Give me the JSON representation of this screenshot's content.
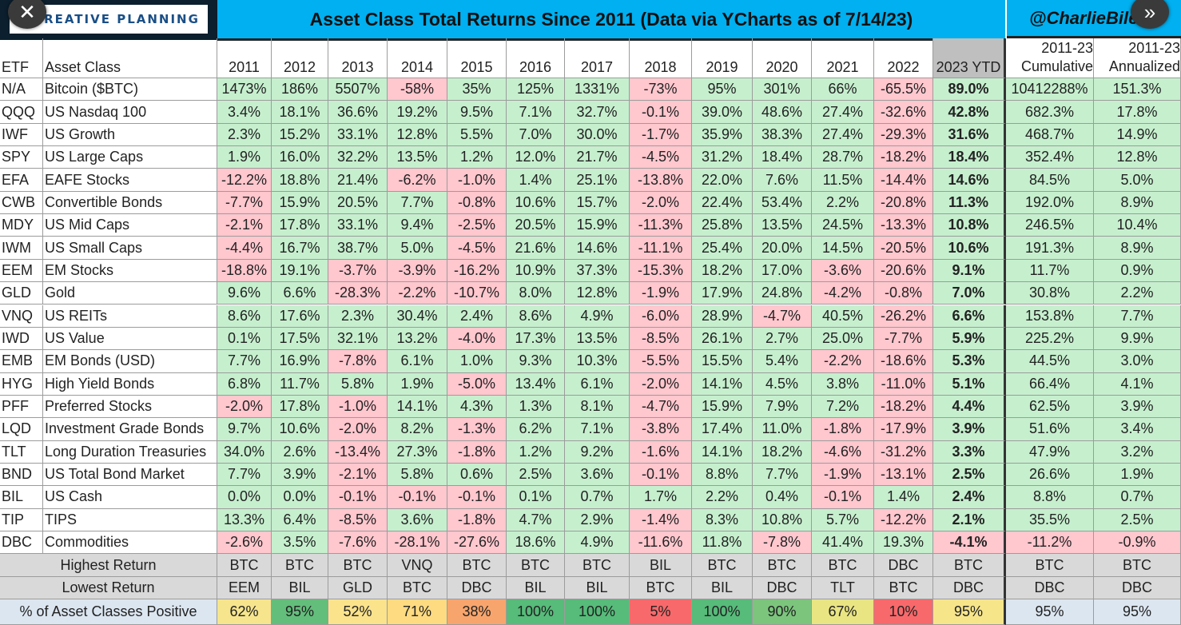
{
  "header": {
    "logo_text": "CREATIVE PLANNING",
    "title": "Asset Class Total Returns Since 2011 (Data via YCharts as of 7/14/23)",
    "handle": "@CharlieBile",
    "close_glyph": "✕",
    "next_glyph": "»"
  },
  "columns": {
    "etf": "ETF",
    "asset": "Asset Class",
    "years": [
      "2011",
      "2012",
      "2013",
      "2014",
      "2015",
      "2016",
      "2017",
      "2018",
      "2019",
      "2020",
      "2021",
      "2022",
      "2023 YTD"
    ],
    "cum1": "2011-23",
    "cum2": "Cumulative",
    "ann1": "2011-23",
    "ann2": "Annualized"
  },
  "rows": [
    {
      "etf": "N/A",
      "asset": "Bitcoin ($BTC)",
      "vals": [
        "1473%",
        "186%",
        "5507%",
        "-58%",
        "35%",
        "125%",
        "1331%",
        "-73%",
        "95%",
        "301%",
        "66%",
        "-65.5%",
        "89.0%"
      ],
      "cum": "10412288%",
      "ann": "151.3%"
    },
    {
      "etf": "QQQ",
      "asset": "US Nasdaq 100",
      "vals": [
        "3.4%",
        "18.1%",
        "36.6%",
        "19.2%",
        "9.5%",
        "7.1%",
        "32.7%",
        "-0.1%",
        "39.0%",
        "48.6%",
        "27.4%",
        "-32.6%",
        "42.8%"
      ],
      "cum": "682.3%",
      "ann": "17.8%"
    },
    {
      "etf": "IWF",
      "asset": "US Growth",
      "vals": [
        "2.3%",
        "15.2%",
        "33.1%",
        "12.8%",
        "5.5%",
        "7.0%",
        "30.0%",
        "-1.7%",
        "35.9%",
        "38.3%",
        "27.4%",
        "-29.3%",
        "31.6%"
      ],
      "cum": "468.7%",
      "ann": "14.9%"
    },
    {
      "etf": "SPY",
      "asset": "US Large Caps",
      "vals": [
        "1.9%",
        "16.0%",
        "32.2%",
        "13.5%",
        "1.2%",
        "12.0%",
        "21.7%",
        "-4.5%",
        "31.2%",
        "18.4%",
        "28.7%",
        "-18.2%",
        "18.4%"
      ],
      "cum": "352.4%",
      "ann": "12.8%"
    },
    {
      "etf": "EFA",
      "asset": "EAFE Stocks",
      "vals": [
        "-12.2%",
        "18.8%",
        "21.4%",
        "-6.2%",
        "-1.0%",
        "1.4%",
        "25.1%",
        "-13.8%",
        "22.0%",
        "7.6%",
        "11.5%",
        "-14.4%",
        "14.6%"
      ],
      "cum": "84.5%",
      "ann": "5.0%"
    },
    {
      "etf": "CWB",
      "asset": "Convertible Bonds",
      "vals": [
        "-7.7%",
        "15.9%",
        "20.5%",
        "7.7%",
        "-0.8%",
        "10.6%",
        "15.7%",
        "-2.0%",
        "22.4%",
        "53.4%",
        "2.2%",
        "-20.8%",
        "11.3%"
      ],
      "cum": "192.0%",
      "ann": "8.9%"
    },
    {
      "etf": "MDY",
      "asset": "US Mid Caps",
      "vals": [
        "-2.1%",
        "17.8%",
        "33.1%",
        "9.4%",
        "-2.5%",
        "20.5%",
        "15.9%",
        "-11.3%",
        "25.8%",
        "13.5%",
        "24.5%",
        "-13.3%",
        "10.8%"
      ],
      "cum": "246.5%",
      "ann": "10.4%"
    },
    {
      "etf": "IWM",
      "asset": "US Small Caps",
      "vals": [
        "-4.4%",
        "16.7%",
        "38.7%",
        "5.0%",
        "-4.5%",
        "21.6%",
        "14.6%",
        "-11.1%",
        "25.4%",
        "20.0%",
        "14.5%",
        "-20.5%",
        "10.6%"
      ],
      "cum": "191.3%",
      "ann": "8.9%"
    },
    {
      "etf": "EEM",
      "asset": "EM Stocks",
      "vals": [
        "-18.8%",
        "19.1%",
        "-3.7%",
        "-3.9%",
        "-16.2%",
        "10.9%",
        "37.3%",
        "-15.3%",
        "18.2%",
        "17.0%",
        "-3.6%",
        "-20.6%",
        "9.1%"
      ],
      "cum": "11.7%",
      "ann": "0.9%"
    },
    {
      "etf": "GLD",
      "asset": "Gold",
      "vals": [
        "9.6%",
        "6.6%",
        "-28.3%",
        "-2.2%",
        "-10.7%",
        "8.0%",
        "12.8%",
        "-1.9%",
        "17.9%",
        "24.8%",
        "-4.2%",
        "-0.8%",
        "7.0%"
      ],
      "cum": "30.8%",
      "ann": "2.2%"
    },
    {
      "etf": "VNQ",
      "asset": "US REITs",
      "vals": [
        "8.6%",
        "17.6%",
        "2.3%",
        "30.4%",
        "2.4%",
        "8.6%",
        "4.9%",
        "-6.0%",
        "28.9%",
        "-4.7%",
        "40.5%",
        "-26.2%",
        "6.6%"
      ],
      "cum": "153.8%",
      "ann": "7.7%"
    },
    {
      "etf": "IWD",
      "asset": "US Value",
      "vals": [
        "0.1%",
        "17.5%",
        "32.1%",
        "13.2%",
        "-4.0%",
        "17.3%",
        "13.5%",
        "-8.5%",
        "26.1%",
        "2.7%",
        "25.0%",
        "-7.7%",
        "5.9%"
      ],
      "cum": "225.2%",
      "ann": "9.9%"
    },
    {
      "etf": "EMB",
      "asset": "EM Bonds (USD)",
      "vals": [
        "7.7%",
        "16.9%",
        "-7.8%",
        "6.1%",
        "1.0%",
        "9.3%",
        "10.3%",
        "-5.5%",
        "15.5%",
        "5.4%",
        "-2.2%",
        "-18.6%",
        "5.3%"
      ],
      "cum": "44.5%",
      "ann": "3.0%"
    },
    {
      "etf": "HYG",
      "asset": "High Yield Bonds",
      "vals": [
        "6.8%",
        "11.7%",
        "5.8%",
        "1.9%",
        "-5.0%",
        "13.4%",
        "6.1%",
        "-2.0%",
        "14.1%",
        "4.5%",
        "3.8%",
        "-11.0%",
        "5.1%"
      ],
      "cum": "66.4%",
      "ann": "4.1%"
    },
    {
      "etf": "PFF",
      "asset": "Preferred Stocks",
      "vals": [
        "-2.0%",
        "17.8%",
        "-1.0%",
        "14.1%",
        "4.3%",
        "1.3%",
        "8.1%",
        "-4.7%",
        "15.9%",
        "7.9%",
        "7.2%",
        "-18.2%",
        "4.4%"
      ],
      "cum": "62.5%",
      "ann": "3.9%"
    },
    {
      "etf": "LQD",
      "asset": "Investment Grade Bonds",
      "vals": [
        "9.7%",
        "10.6%",
        "-2.0%",
        "8.2%",
        "-1.3%",
        "6.2%",
        "7.1%",
        "-3.8%",
        "17.4%",
        "11.0%",
        "-1.8%",
        "-17.9%",
        "3.9%"
      ],
      "cum": "51.6%",
      "ann": "3.4%"
    },
    {
      "etf": "TLT",
      "asset": "Long Duration Treasuries",
      "vals": [
        "34.0%",
        "2.6%",
        "-13.4%",
        "27.3%",
        "-1.8%",
        "1.2%",
        "9.2%",
        "-1.6%",
        "14.1%",
        "18.2%",
        "-4.6%",
        "-31.2%",
        "3.3%"
      ],
      "cum": "47.9%",
      "ann": "3.2%"
    },
    {
      "etf": "BND",
      "asset": "US Total Bond Market",
      "vals": [
        "7.7%",
        "3.9%",
        "-2.1%",
        "5.8%",
        "0.6%",
        "2.5%",
        "3.6%",
        "-0.1%",
        "8.8%",
        "7.7%",
        "-1.9%",
        "-13.1%",
        "2.5%"
      ],
      "cum": "26.6%",
      "ann": "1.9%"
    },
    {
      "etf": "BIL",
      "asset": "US Cash",
      "vals": [
        "0.0%",
        "0.0%",
        "-0.1%",
        "-0.1%",
        "-0.1%",
        "0.1%",
        "0.7%",
        "1.7%",
        "2.2%",
        "0.4%",
        "-0.1%",
        "1.4%",
        "2.4%"
      ],
      "cum": "8.8%",
      "ann": "0.7%"
    },
    {
      "etf": "TIP",
      "asset": "TIPS",
      "vals": [
        "13.3%",
        "6.4%",
        "-8.5%",
        "3.6%",
        "-1.8%",
        "4.7%",
        "2.9%",
        "-1.4%",
        "8.3%",
        "10.8%",
        "5.7%",
        "-12.2%",
        "2.1%"
      ],
      "cum": "35.5%",
      "ann": "2.5%"
    },
    {
      "etf": "DBC",
      "asset": "Commodities",
      "vals": [
        "-2.6%",
        "3.5%",
        "-7.6%",
        "-28.1%",
        "-27.6%",
        "18.6%",
        "4.9%",
        "-11.6%",
        "11.8%",
        "-7.8%",
        "41.4%",
        "19.3%",
        "-4.1%"
      ],
      "cum": "-11.2%",
      "ann": "-0.9%"
    }
  ],
  "summary": {
    "highest_label": "Highest Return",
    "highest": [
      "BTC",
      "BTC",
      "BTC",
      "VNQ",
      "BTC",
      "BTC",
      "BTC",
      "BIL",
      "BTC",
      "BTC",
      "BTC",
      "DBC",
      "BTC",
      "BTC",
      "BTC"
    ],
    "lowest_label": "Lowest Return",
    "lowest": [
      "EEM",
      "BIL",
      "GLD",
      "BTC",
      "DBC",
      "BIL",
      "BIL",
      "BTC",
      "BIL",
      "DBC",
      "TLT",
      "BTC",
      "DBC",
      "DBC",
      "DBC"
    ],
    "positive_label": "% of Asset Classes Positive",
    "positive": [
      "62%",
      "95%",
      "52%",
      "71%",
      "38%",
      "100%",
      "100%",
      "5%",
      "100%",
      "90%",
      "67%",
      "10%",
      "95%",
      "95%",
      "95%"
    ],
    "positive_colors": [
      "#f6e58d",
      "#63be7b",
      "#fbe38c",
      "#fedb81",
      "#f8a56d",
      "#57bb7a",
      "#57bb7a",
      "#f8696b",
      "#57bb7a",
      "#7cc57d",
      "#e9e583",
      "#f8696b",
      "#f7e58a",
      "#dce6f1",
      "#dce6f1"
    ]
  },
  "colors": {
    "positive": "#c6efce",
    "negative": "#ffc7ce",
    "header_blue": "#00b0f0"
  }
}
